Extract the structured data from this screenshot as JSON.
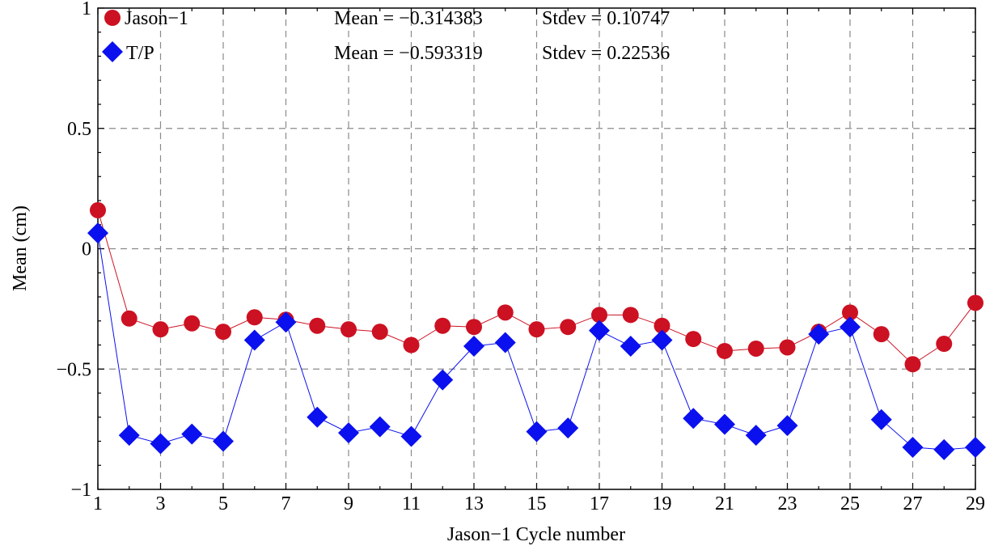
{
  "chart_data": {
    "type": "line",
    "xlabel": "Jason−1 Cycle number",
    "ylabel": "Mean (cm)",
    "xlim": [
      1,
      29
    ],
    "ylim": [
      -1,
      1
    ],
    "grid": true,
    "legend_position": "top-left",
    "x_ticks": [
      "1",
      "3",
      "5",
      "7",
      "9",
      "11",
      "13",
      "15",
      "17",
      "19",
      "21",
      "23",
      "25",
      "27",
      "29"
    ],
    "x_tick_values": [
      1,
      3,
      5,
      7,
      9,
      11,
      13,
      15,
      17,
      19,
      21,
      23,
      25,
      27,
      29
    ],
    "y_ticks": [
      "−1",
      "−0.5",
      "0",
      "0.5",
      "1"
    ],
    "y_tick_values": [
      -1,
      -0.5,
      0,
      0.5,
      1
    ],
    "x": [
      1,
      2,
      3,
      4,
      5,
      6,
      7,
      8,
      9,
      10,
      11,
      12,
      13,
      14,
      15,
      16,
      17,
      18,
      19,
      20,
      21,
      22,
      23,
      24,
      25,
      26,
      27,
      28,
      29
    ],
    "series": [
      {
        "name": "Jason−1",
        "color": "#cc1122",
        "marker": "circle",
        "values": [
          0.16,
          -0.29,
          -0.335,
          -0.31,
          -0.345,
          -0.285,
          -0.295,
          -0.32,
          -0.335,
          -0.345,
          -0.4,
          -0.32,
          -0.325,
          -0.265,
          -0.335,
          -0.325,
          -0.275,
          -0.275,
          -0.32,
          -0.375,
          -0.425,
          -0.415,
          -0.41,
          -0.345,
          -0.265,
          -0.355,
          -0.48,
          -0.395,
          -0.225
        ]
      },
      {
        "name": "T/P",
        "color": "#0a10ee",
        "marker": "diamond",
        "values": [
          0.065,
          -0.775,
          -0.81,
          -0.77,
          -0.8,
          -0.38,
          -0.305,
          -0.7,
          -0.765,
          -0.74,
          -0.78,
          -0.545,
          -0.405,
          -0.39,
          -0.76,
          -0.745,
          -0.34,
          -0.405,
          -0.38,
          -0.705,
          -0.73,
          -0.775,
          -0.735,
          -0.355,
          -0.325,
          -0.71,
          -0.825,
          -0.835,
          -0.825
        ]
      }
    ],
    "annotations": [
      {
        "mean_text": "Mean = −0.314383",
        "stdev_text": "Stdev = 0.10747"
      },
      {
        "mean_text": "Mean = −0.593319",
        "stdev_text": "Stdev = 0.22536"
      }
    ]
  }
}
